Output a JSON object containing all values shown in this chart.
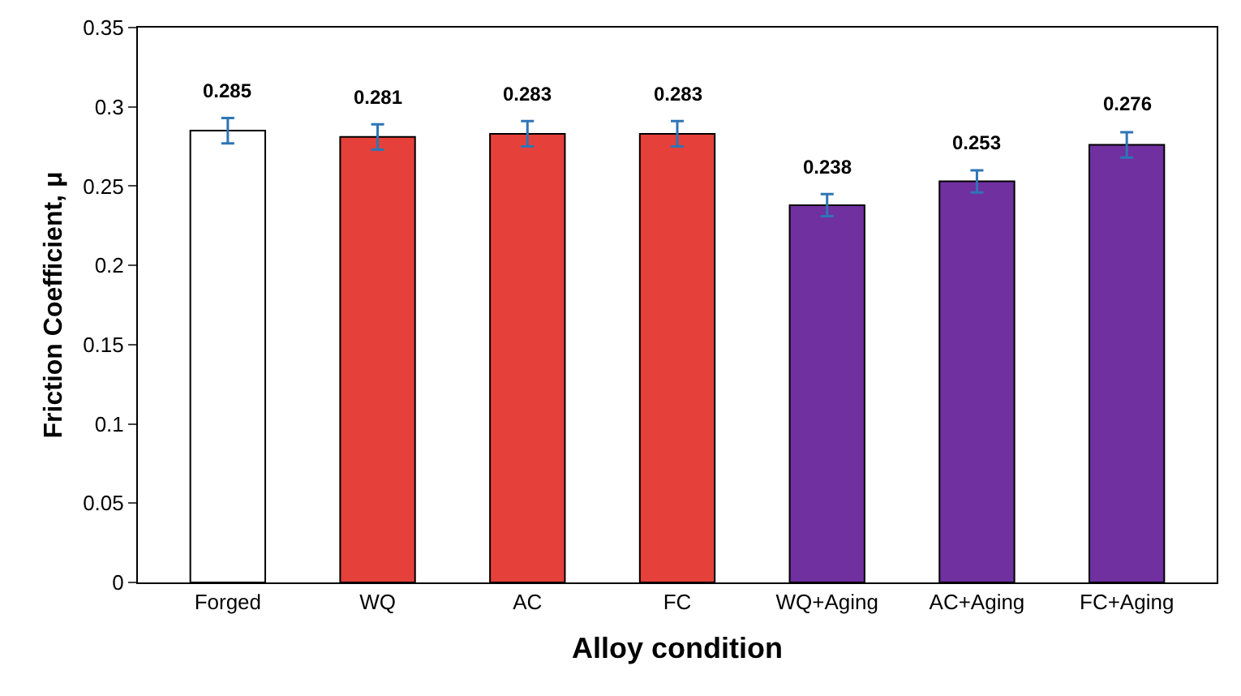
{
  "chart_data": {
    "type": "bar",
    "xlabel": "Alloy condition",
    "ylabel": "Friction Coefficient, μ",
    "categories": [
      "Forged",
      "WQ",
      "AC",
      "FC",
      "WQ+Aging",
      "AC+Aging",
      "FC+Aging"
    ],
    "values": [
      0.285,
      0.281,
      0.283,
      0.283,
      0.238,
      0.253,
      0.276
    ],
    "colors": [
      "#ffffff",
      "#e5403a",
      "#e5403a",
      "#e5403a",
      "#7030a0",
      "#7030a0",
      "#7030a0"
    ],
    "errors": [
      0.008,
      0.008,
      0.008,
      0.008,
      0.007,
      0.007,
      0.008
    ],
    "ylim": [
      0,
      0.35
    ],
    "yticks": [
      0,
      0.05,
      0.1,
      0.15,
      0.2,
      0.25,
      0.3,
      0.35
    ],
    "data_labels": true
  }
}
